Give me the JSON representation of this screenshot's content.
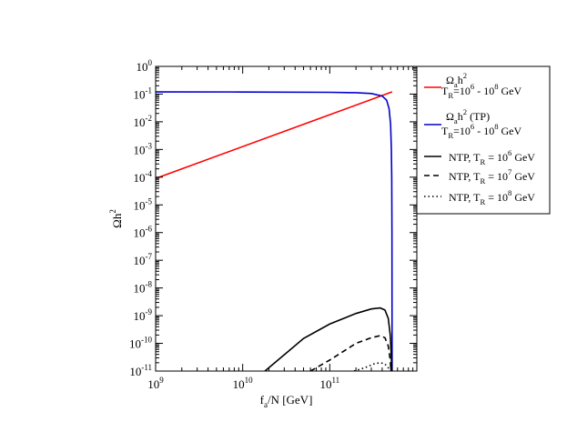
{
  "chart_data": {
    "type": "line",
    "xscale": "log",
    "yscale": "log",
    "xlim": [
      1000000000.0,
      1000000000000.0
    ],
    "ylim": [
      1e-11,
      1
    ],
    "xlabel": {
      "base": "f",
      "sub": "a",
      "rest": "/N [GeV]"
    },
    "ylabel": {
      "base": "Ωh",
      "sup": "2"
    },
    "x_ticks": [
      {
        "value": 1000000000.0,
        "mant": "10",
        "exp": "9"
      },
      {
        "value": 10000000000.0,
        "mant": "10",
        "exp": "10"
      },
      {
        "value": 100000000000.0,
        "mant": "10",
        "exp": "11"
      }
    ],
    "y_ticks": [
      {
        "value": 1,
        "mant": "10",
        "exp": "0"
      },
      {
        "value": 0.1,
        "mant": "10",
        "exp": "-1"
      },
      {
        "value": 0.01,
        "mant": "10",
        "exp": "-2"
      },
      {
        "value": 0.001,
        "mant": "10",
        "exp": "-3"
      },
      {
        "value": 0.0001,
        "mant": "10",
        "exp": "-4"
      },
      {
        "value": 1e-05,
        "mant": "10",
        "exp": "-5"
      },
      {
        "value": 1e-06,
        "mant": "10",
        "exp": "-6"
      },
      {
        "value": 1e-07,
        "mant": "10",
        "exp": "-7"
      },
      {
        "value": 1e-08,
        "mant": "10",
        "exp": "-8"
      },
      {
        "value": 1e-09,
        "mant": "10",
        "exp": "-9"
      },
      {
        "value": 1e-10,
        "mant": "10",
        "exp": "-10"
      },
      {
        "value": 1e-11,
        "mant": "10",
        "exp": "-11"
      }
    ],
    "legend_position": "right-outside",
    "series": [
      {
        "id": "misalignment",
        "color": "#ff0000",
        "dash": "solid",
        "legend_line1": [
          [
            "t",
            "Ω"
          ],
          [
            "sub",
            "a"
          ],
          [
            "t",
            "h"
          ],
          [
            "sup",
            "2"
          ]
        ],
        "legend_line2": [
          [
            "t",
            "T"
          ],
          [
            "sub",
            "R"
          ],
          [
            "t",
            "=10"
          ],
          [
            "sup",
            "6"
          ],
          [
            "t",
            " - 10"
          ],
          [
            "sup",
            "8"
          ],
          [
            "t",
            " GeV"
          ]
        ],
        "points": [
          [
            1000000000.0,
            9e-05
          ],
          [
            520000000000.0,
            0.12
          ]
        ]
      },
      {
        "id": "thermal-tp",
        "color": "#0000cc",
        "dash": "solid",
        "legend_line1": [
          [
            "t",
            "Ω"
          ],
          [
            "sub",
            "a"
          ],
          [
            "t",
            "h"
          ],
          [
            "sup",
            "2"
          ],
          [
            "t",
            " (TP)"
          ]
        ],
        "legend_line2": [
          [
            "t",
            "T"
          ],
          [
            "sub",
            "R"
          ],
          [
            "t",
            "=10"
          ],
          [
            "sup",
            "6"
          ],
          [
            "t",
            " - 10"
          ],
          [
            "sup",
            "8"
          ],
          [
            "t",
            " GeV"
          ]
        ],
        "points": [
          [
            1000000000.0,
            0.12
          ],
          [
            10000000000.0,
            0.119
          ],
          [
            100000000000.0,
            0.116
          ],
          [
            200000000000.0,
            0.112
          ],
          [
            300000000000.0,
            0.105
          ],
          [
            400000000000.0,
            0.085
          ],
          [
            450000000000.0,
            0.06
          ],
          [
            480000000000.0,
            0.03
          ],
          [
            500000000000.0,
            0.008
          ],
          [
            510000000000.0,
            0.001
          ],
          [
            515000000000.0,
            0.0001
          ],
          [
            518000000000.0,
            1e-06
          ],
          [
            520000000000.0,
            1e-11
          ]
        ]
      },
      {
        "id": "ntp-1e6",
        "color": "#000000",
        "dash": "solid",
        "legend_line1": [
          [
            "t",
            "NTP, T"
          ],
          [
            "sub",
            "R"
          ],
          [
            "t",
            " = 10"
          ],
          [
            "sup",
            "6"
          ],
          [
            "t",
            " GeV"
          ]
        ],
        "points": [
          [
            18000000000.0,
            1e-11
          ],
          [
            50000000000.0,
            1.5e-10
          ],
          [
            100000000000.0,
            5e-10
          ],
          [
            200000000000.0,
            1.2e-09
          ],
          [
            300000000000.0,
            1.75e-09
          ],
          [
            380000000000.0,
            1.9e-09
          ],
          [
            430000000000.0,
            1.6e-09
          ],
          [
            470000000000.0,
            8e-10
          ],
          [
            495000000000.0,
            2e-10
          ],
          [
            510000000000.0,
            3e-11
          ],
          [
            515000000000.0,
            1e-11
          ]
        ]
      },
      {
        "id": "ntp-1e7",
        "color": "#000000",
        "dash": "dashed",
        "legend_line1": [
          [
            "t",
            "NTP, T"
          ],
          [
            "sub",
            "R"
          ],
          [
            "t",
            " = 10"
          ],
          [
            "sup",
            "7"
          ],
          [
            "t",
            " GeV"
          ]
        ],
        "points": [
          [
            60000000000.0,
            1e-11
          ],
          [
            100000000000.0,
            2.5e-11
          ],
          [
            200000000000.0,
            1e-10
          ],
          [
            300000000000.0,
            1.6e-10
          ],
          [
            380000000000.0,
            1.9e-10
          ],
          [
            430000000000.0,
            1.6e-10
          ],
          [
            470000000000.0,
            8e-11
          ],
          [
            495000000000.0,
            2.5e-11
          ],
          [
            505000000000.0,
            1e-11
          ]
        ]
      },
      {
        "id": "ntp-1e8",
        "color": "#000000",
        "dash": "dotted",
        "legend_line1": [
          [
            "t",
            "NTP, T"
          ],
          [
            "sub",
            "R"
          ],
          [
            "t",
            " = 10"
          ],
          [
            "sup",
            "8"
          ],
          [
            "t",
            " GeV"
          ]
        ],
        "points": [
          [
            190000000000.0,
            1e-11
          ],
          [
            250000000000.0,
            1.3e-11
          ],
          [
            320000000000.0,
            1.8e-11
          ],
          [
            380000000000.0,
            2e-11
          ],
          [
            430000000000.0,
            1.8e-11
          ],
          [
            470000000000.0,
            1.3e-11
          ],
          [
            490000000000.0,
            1e-11
          ]
        ]
      }
    ]
  }
}
